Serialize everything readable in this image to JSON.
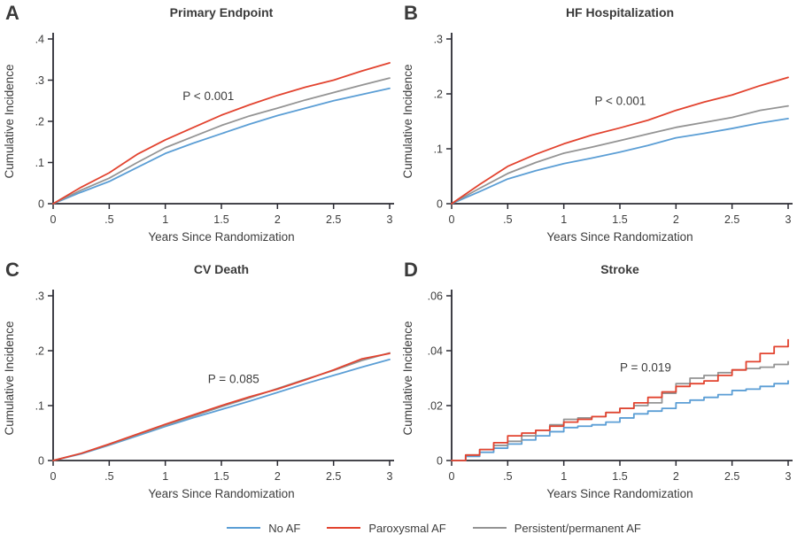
{
  "figure": {
    "axis_color": "#2b2b33",
    "text_color": "#3d3d3d",
    "title_color": "#3a3a3a",
    "background": "#ffffff",
    "legend": {
      "items": [
        {
          "label": "No AF",
          "color": "#5b9ed5"
        },
        {
          "label": "Paroxysmal AF",
          "color": "#e2432f"
        },
        {
          "label": "Persistent/permanent AF",
          "color": "#949494"
        }
      ]
    }
  },
  "chart_data": [
    {
      "type": "line",
      "letter": "A",
      "title": "Primary Endpoint",
      "xlabel": "Years Since Randomization",
      "ylabel": "Cumulative Incidence",
      "annotation": "P < 0.001",
      "annotation_pos": [
        0.385,
        0.37
      ],
      "xlim": [
        0,
        3
      ],
      "ylim": [
        0,
        0.4
      ],
      "xticks": [
        0,
        0.5,
        1,
        1.5,
        2,
        2.5,
        3
      ],
      "xtick_labels": [
        "0",
        ".5",
        "1",
        "1.5",
        "2",
        "2.5",
        "3"
      ],
      "yticks": [
        0,
        0.1,
        0.2,
        0.3,
        0.4
      ],
      "ytick_labels": [
        "0",
        ".1",
        ".2",
        ".3",
        ".4"
      ],
      "step": false,
      "x": [
        0,
        0.25,
        0.5,
        0.75,
        1,
        1.25,
        1.5,
        1.75,
        2,
        2.25,
        2.5,
        2.75,
        3
      ],
      "series": [
        {
          "name": "No AF",
          "color": "#5b9ed5",
          "values": [
            0,
            0.028,
            0.054,
            0.088,
            0.122,
            0.147,
            0.17,
            0.193,
            0.214,
            0.232,
            0.25,
            0.265,
            0.28
          ]
        },
        {
          "name": "Persistent/permanent AF",
          "color": "#949494",
          "values": [
            0,
            0.033,
            0.062,
            0.1,
            0.136,
            0.163,
            0.19,
            0.213,
            0.232,
            0.252,
            0.27,
            0.288,
            0.305
          ]
        },
        {
          "name": "Paroxysmal AF",
          "color": "#e2432f",
          "values": [
            0,
            0.04,
            0.075,
            0.12,
            0.155,
            0.185,
            0.215,
            0.24,
            0.263,
            0.283,
            0.3,
            0.322,
            0.342
          ]
        }
      ]
    },
    {
      "type": "line",
      "letter": "B",
      "title": "HF Hospitalization",
      "xlabel": "Years Since Randomization",
      "ylabel": "Cumulative Incidence",
      "annotation": "P < 0.001",
      "annotation_pos": [
        0.425,
        0.4
      ],
      "xlim": [
        0,
        3
      ],
      "ylim": [
        0,
        0.3
      ],
      "xticks": [
        0,
        0.5,
        1,
        1.5,
        2,
        2.5,
        3
      ],
      "xtick_labels": [
        "0",
        ".5",
        "1",
        "1.5",
        "2",
        "2.5",
        "3"
      ],
      "yticks": [
        0,
        0.1,
        0.2,
        0.3
      ],
      "ytick_labels": [
        "0",
        ".1",
        ".2",
        ".3"
      ],
      "step": false,
      "x": [
        0,
        0.25,
        0.5,
        0.75,
        1,
        1.25,
        1.5,
        1.75,
        2,
        2.25,
        2.5,
        2.75,
        3
      ],
      "series": [
        {
          "name": "No AF",
          "color": "#5b9ed5",
          "values": [
            0,
            0.022,
            0.045,
            0.06,
            0.073,
            0.083,
            0.094,
            0.106,
            0.12,
            0.128,
            0.137,
            0.147,
            0.155
          ]
        },
        {
          "name": "Persistent/permanent AF",
          "color": "#949494",
          "values": [
            0,
            0.028,
            0.055,
            0.075,
            0.092,
            0.103,
            0.115,
            0.127,
            0.139,
            0.148,
            0.157,
            0.17,
            0.178
          ]
        },
        {
          "name": "Paroxysmal AF",
          "color": "#e2432f",
          "values": [
            0,
            0.035,
            0.068,
            0.09,
            0.109,
            0.125,
            0.138,
            0.152,
            0.17,
            0.185,
            0.198,
            0.215,
            0.23
          ]
        }
      ]
    },
    {
      "type": "line",
      "letter": "C",
      "title": "CV Death",
      "xlabel": "Years Since Randomization",
      "ylabel": "Cumulative Incidence",
      "annotation": "P = 0.085",
      "annotation_pos": [
        0.46,
        0.53
      ],
      "xlim": [
        0,
        3
      ],
      "ylim": [
        0,
        0.3
      ],
      "xticks": [
        0,
        0.5,
        1,
        1.5,
        2,
        2.5,
        3
      ],
      "xtick_labels": [
        "0",
        ".5",
        "1",
        "1.5",
        "2",
        "2.5",
        "3"
      ],
      "yticks": [
        0,
        0.1,
        0.2,
        0.3
      ],
      "ytick_labels": [
        "0",
        ".1",
        ".2",
        ".3"
      ],
      "step": false,
      "x": [
        0,
        0.25,
        0.5,
        0.75,
        1,
        1.25,
        1.5,
        1.75,
        2,
        2.25,
        2.5,
        2.75,
        3
      ],
      "series": [
        {
          "name": "No AF",
          "color": "#5b9ed5",
          "values": [
            0,
            0.012,
            0.028,
            0.045,
            0.062,
            0.078,
            0.093,
            0.108,
            0.124,
            0.14,
            0.155,
            0.17,
            0.184
          ]
        },
        {
          "name": "Persistent/permanent AF",
          "color": "#949494",
          "values": [
            0,
            0.013,
            0.029,
            0.047,
            0.064,
            0.081,
            0.098,
            0.114,
            0.131,
            0.148,
            0.164,
            0.182,
            0.196
          ]
        },
        {
          "name": "Paroxysmal AF",
          "color": "#e2432f",
          "values": [
            0,
            0.013,
            0.03,
            0.048,
            0.066,
            0.083,
            0.1,
            0.116,
            0.13,
            0.147,
            0.165,
            0.185,
            0.195
          ]
        }
      ]
    },
    {
      "type": "line",
      "letter": "D",
      "title": "Stroke",
      "xlabel": "Years Since Randomization",
      "ylabel": "Cumulative Incidence",
      "annotation": "P = 0.019",
      "annotation_pos": [
        0.5,
        0.46
      ],
      "xlim": [
        0,
        3
      ],
      "ylim": [
        0,
        0.06
      ],
      "xticks": [
        0,
        0.5,
        1,
        1.5,
        2,
        2.5,
        3
      ],
      "xtick_labels": [
        "0",
        ".5",
        "1",
        "1.5",
        "2",
        "2.5",
        "3"
      ],
      "yticks": [
        0,
        0.02,
        0.04,
        0.06
      ],
      "ytick_labels": [
        "0",
        ".02",
        ".04",
        ".06"
      ],
      "step": true,
      "x": [
        0,
        0.125,
        0.25,
        0.375,
        0.5,
        0.625,
        0.75,
        0.875,
        1,
        1.125,
        1.25,
        1.375,
        1.5,
        1.625,
        1.75,
        1.875,
        2,
        2.125,
        2.25,
        2.375,
        2.5,
        2.625,
        2.75,
        2.875,
        3
      ],
      "series": [
        {
          "name": "No AF",
          "color": "#5b9ed5",
          "values": [
            0,
            0.0015,
            0.003,
            0.0045,
            0.006,
            0.0075,
            0.009,
            0.0105,
            0.012,
            0.0125,
            0.013,
            0.014,
            0.0155,
            0.017,
            0.018,
            0.019,
            0.021,
            0.022,
            0.023,
            0.024,
            0.0255,
            0.026,
            0.027,
            0.028,
            0.029
          ]
        },
        {
          "name": "Persistent/permanent AF",
          "color": "#949494",
          "values": [
            0,
            0.002,
            0.004,
            0.0055,
            0.007,
            0.009,
            0.011,
            0.013,
            0.015,
            0.0155,
            0.016,
            0.0175,
            0.019,
            0.02,
            0.021,
            0.0245,
            0.028,
            0.03,
            0.031,
            0.032,
            0.033,
            0.0335,
            0.034,
            0.035,
            0.036
          ]
        },
        {
          "name": "Paroxysmal AF",
          "color": "#e2432f",
          "values": [
            0,
            0.002,
            0.004,
            0.0065,
            0.009,
            0.01,
            0.011,
            0.0125,
            0.014,
            0.015,
            0.016,
            0.0175,
            0.019,
            0.021,
            0.023,
            0.025,
            0.027,
            0.028,
            0.029,
            0.031,
            0.033,
            0.036,
            0.039,
            0.0415,
            0.044
          ]
        }
      ]
    }
  ]
}
